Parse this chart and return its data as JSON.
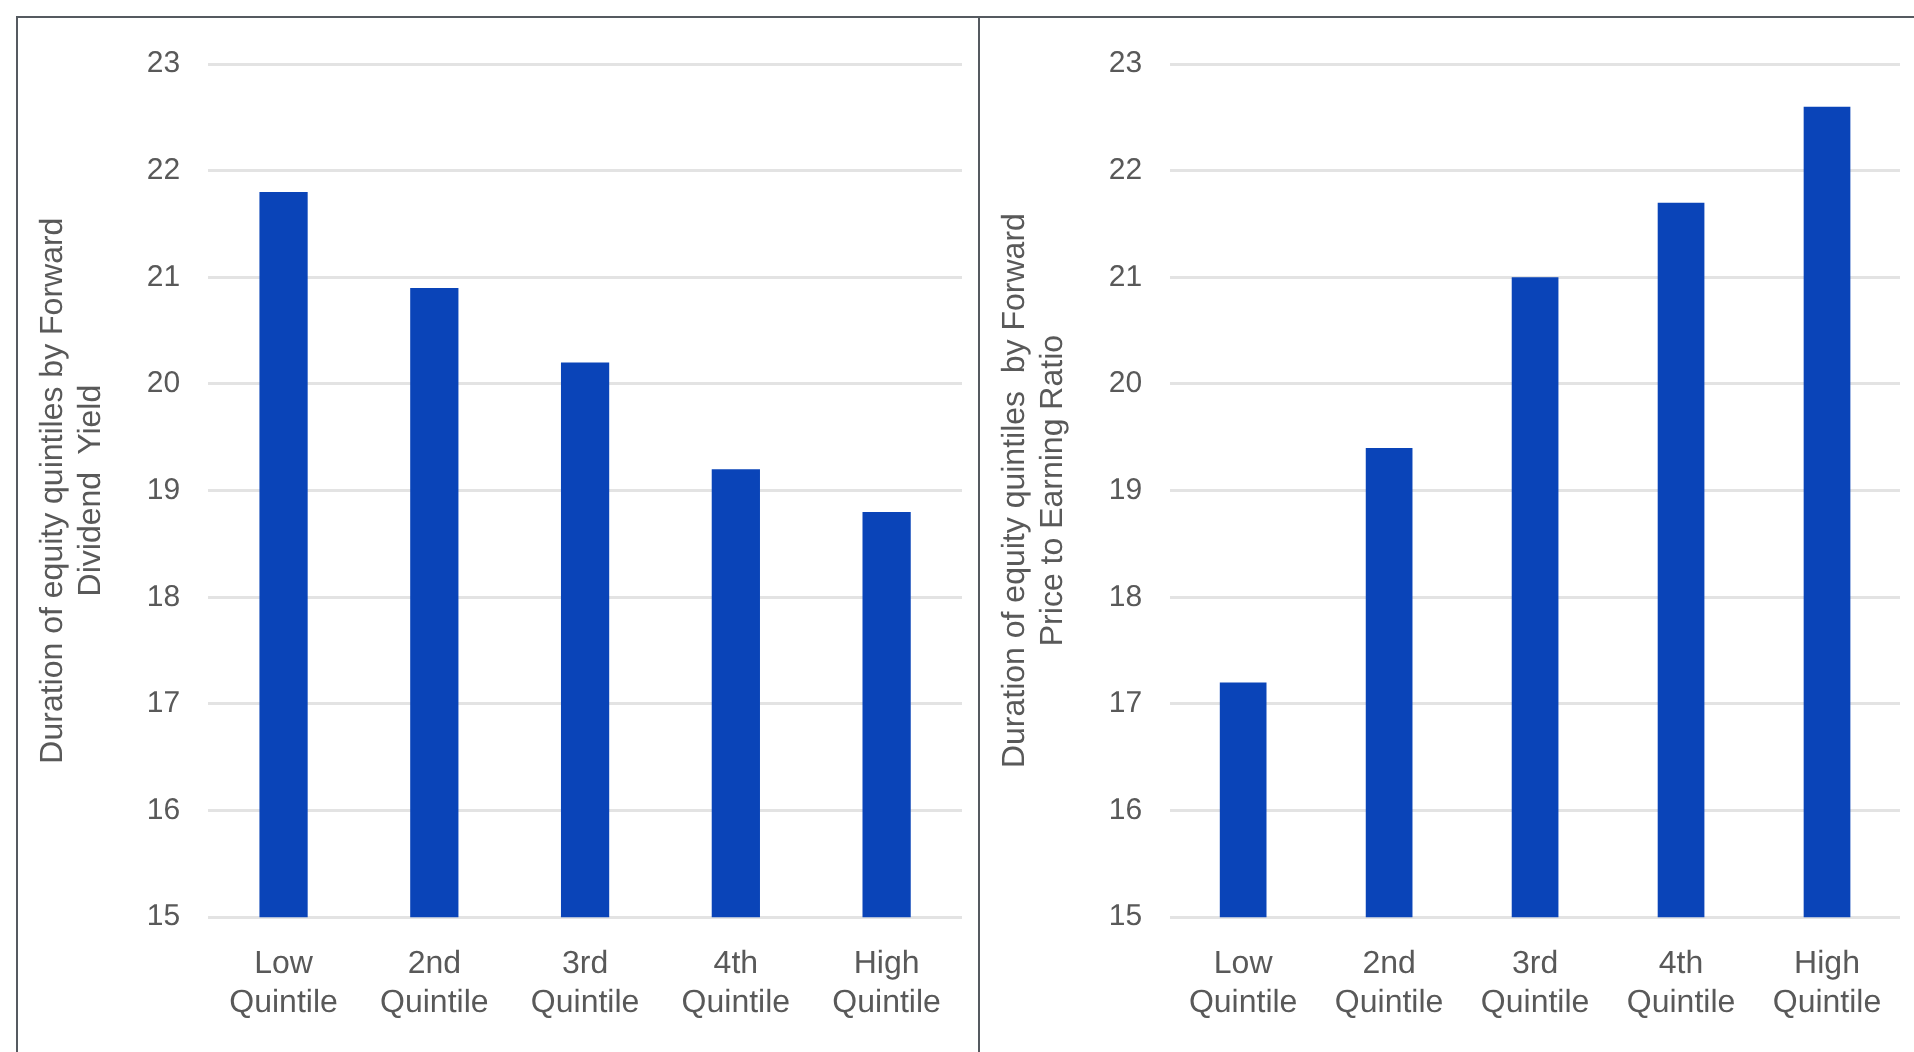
{
  "chart_data": [
    {
      "type": "bar",
      "ylabel": "Duration of equity quintiles by Forward Dividend  Yield",
      "categories": [
        "Low Quintile",
        "2nd Quintile",
        "3rd Quintile",
        "4th Quintile",
        "High Quintile"
      ],
      "values": [
        21.8,
        20.9,
        20.2,
        19.2,
        18.8
      ],
      "color": "#0a44b8",
      "ylim": [
        15,
        23
      ],
      "yticks": [
        15,
        16,
        17,
        18,
        19,
        20,
        21,
        22,
        23
      ],
      "grid": "y"
    },
    {
      "type": "bar",
      "ylabel": "Duration of equity quintiles  by Forward Price to Earning Ratio",
      "categories": [
        "Low Quintile",
        "2nd Quintile",
        "3rd Quintile",
        "4th Quintile",
        "High Quintile"
      ],
      "values": [
        17.2,
        19.4,
        21.0,
        21.7,
        22.6
      ],
      "color": "#0a44b8",
      "ylim": [
        15,
        23
      ],
      "yticks": [
        15,
        16,
        17,
        18,
        19,
        20,
        21,
        22,
        23
      ],
      "grid": "y"
    }
  ]
}
